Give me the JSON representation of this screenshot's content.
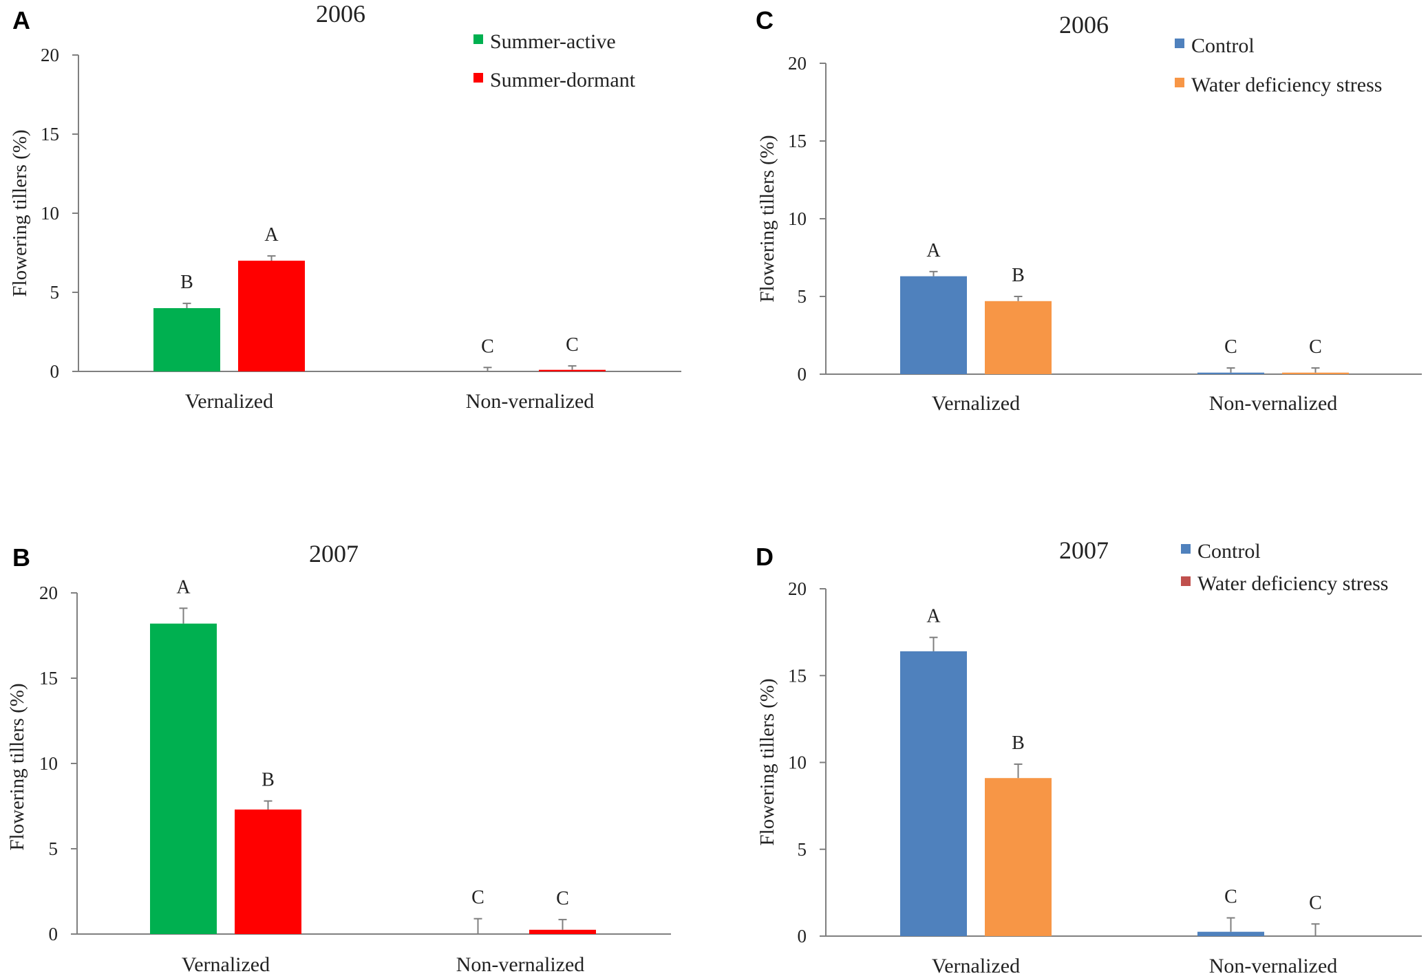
{
  "figure_name": "flowering-tillers-panels",
  "chart_data": [
    {
      "panel": "A",
      "type": "bar",
      "title": "2006",
      "xlabel": "",
      "ylabel": "Flowering tillers (%)",
      "ylim": [
        0,
        20
      ],
      "yticks": [
        0,
        5,
        10,
        15,
        20
      ],
      "categories": [
        "Vernalized",
        "Non-vernalized"
      ],
      "legend_position": "top-right",
      "series": [
        {
          "name": "Summer-active",
          "color": "#00b050",
          "values": [
            4.0,
            0.0
          ],
          "errors": [
            0.3,
            0.25
          ],
          "letters": [
            "B",
            "C"
          ]
        },
        {
          "name": "Summer-dormant",
          "color": "#ff0000",
          "values": [
            7.0,
            0.1
          ],
          "errors": [
            0.3,
            0.25
          ],
          "letters": [
            "A",
            "C"
          ]
        }
      ]
    },
    {
      "panel": "B",
      "type": "bar",
      "title": "2007",
      "xlabel": "",
      "ylabel": "Flowering tillers (%)",
      "ylim": [
        0,
        20
      ],
      "yticks": [
        0,
        5,
        10,
        15,
        20
      ],
      "categories": [
        "Vernalized",
        "Non-vernalized"
      ],
      "legend_position": "none",
      "series": [
        {
          "name": "Summer-active",
          "color": "#00b050",
          "values": [
            18.2,
            0.0
          ],
          "errors": [
            0.9,
            0.9
          ],
          "letters": [
            "A",
            "C"
          ]
        },
        {
          "name": "Summer-dormant",
          "color": "#ff0000",
          "values": [
            7.3,
            0.25
          ],
          "errors": [
            0.5,
            0.6
          ],
          "letters": [
            "B",
            "C"
          ]
        }
      ]
    },
    {
      "panel": "C",
      "type": "bar",
      "title": "2006",
      "xlabel": "",
      "ylabel": "Flowering tillers (%)",
      "ylim": [
        0,
        20
      ],
      "yticks": [
        0,
        5,
        10,
        15,
        20
      ],
      "categories": [
        "Vernalized",
        "Non-vernalized"
      ],
      "legend_position": "top-right",
      "series": [
        {
          "name": "Control",
          "color": "#4f81bd",
          "values": [
            6.3,
            0.1
          ],
          "errors": [
            0.3,
            0.3
          ],
          "letters": [
            "A",
            "C"
          ]
        },
        {
          "name": "Water deficiency stress",
          "color": "#f79646",
          "values": [
            4.7,
            0.1
          ],
          "errors": [
            0.3,
            0.3
          ],
          "letters": [
            "B",
            "C"
          ]
        }
      ]
    },
    {
      "panel": "D",
      "type": "bar",
      "title": "2007",
      "xlabel": "",
      "ylabel": "Flowering tillers (%)",
      "ylim": [
        0,
        20
      ],
      "yticks": [
        0,
        5,
        10,
        15,
        20
      ],
      "categories": [
        "Vernalized",
        "Non-vernalized"
      ],
      "legend_position": "top-right",
      "series": [
        {
          "name": "Control",
          "color": "#4f81bd",
          "legend_color": "#4f81bd",
          "values": [
            16.4,
            0.25
          ],
          "errors": [
            0.8,
            0.8
          ],
          "letters": [
            "A",
            "C"
          ]
        },
        {
          "name": "Water deficiency stress",
          "color": "#f79646",
          "legend_color": "#c0504d",
          "values": [
            9.1,
            0.0
          ],
          "errors": [
            0.8,
            0.7
          ],
          "letters": [
            "B",
            "C"
          ]
        }
      ]
    }
  ]
}
